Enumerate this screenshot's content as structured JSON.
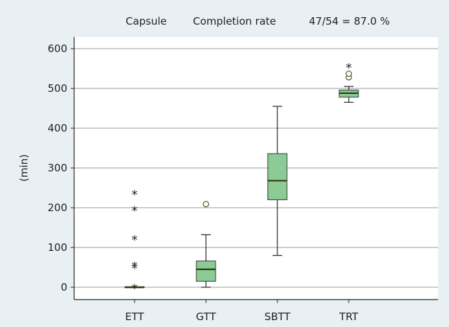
{
  "header": {
    "group": "Capsule",
    "metric": "Completion rate",
    "rate": "47/54 = 87.0 %"
  },
  "chart_data": {
    "type": "box",
    "ylabel": "(min)",
    "ylim": [
      -30,
      630
    ],
    "yticks": [
      0,
      100,
      200,
      300,
      400,
      500,
      600
    ],
    "grid": true,
    "colors": {
      "box_fill": "#8ccb96",
      "median": "#2d3a10",
      "background": "#e8f0f4"
    },
    "categories": [
      "ETT",
      "GTT",
      "SBTT",
      "TRT"
    ],
    "boxes": [
      {
        "category": "ETT",
        "whisker_low": 0,
        "q1": 0,
        "median": 0,
        "q3": 0,
        "whisker_high": 0,
        "outliers_circle": [],
        "outliers_extreme": [
          0,
          51,
          56,
          122,
          196,
          236
        ]
      },
      {
        "category": "GTT",
        "whisker_low": 0,
        "q1": 15,
        "median": 45,
        "q3": 66,
        "whisker_high": 132,
        "outliers_circle": [
          209
        ],
        "outliers_extreme": []
      },
      {
        "category": "SBTT",
        "whisker_low": 80,
        "q1": 220,
        "median": 268,
        "q3": 336,
        "whisker_high": 455,
        "outliers_circle": [],
        "outliers_extreme": []
      },
      {
        "category": "TRT",
        "whisker_low": 465,
        "q1": 478,
        "median": 488,
        "q3": 496,
        "whisker_high": 505,
        "outliers_circle": [
          528,
          537
        ],
        "outliers_extreme": [
          555
        ]
      }
    ]
  }
}
